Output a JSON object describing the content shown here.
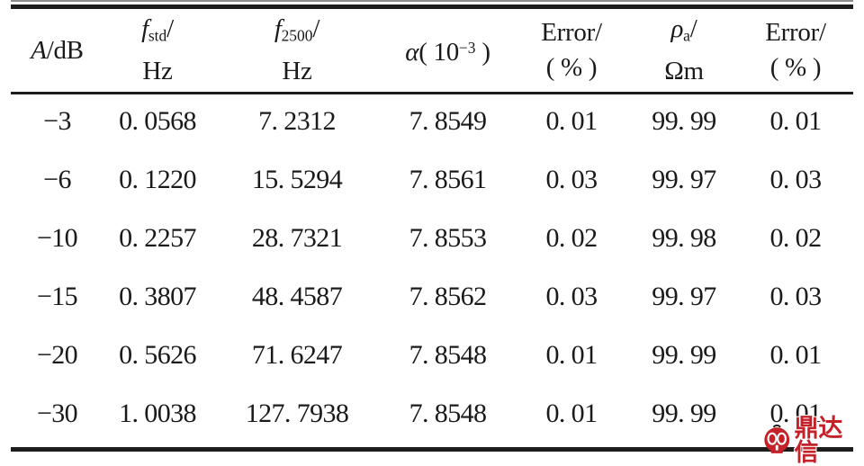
{
  "table": {
    "headers": [
      {
        "sym": "A",
        "rest": "/dB"
      },
      {
        "sym": "f",
        "sub": "std",
        "slash": "/",
        "unit": "Hz"
      },
      {
        "sym": "f",
        "sub": "2500",
        "slash": "/",
        "unit": "Hz"
      },
      {
        "sym": "α",
        "pre": "( 10",
        "sup": "−3",
        "post": " )"
      },
      {
        "line1": "Error/",
        "line2": "( % )"
      },
      {
        "sym": "ρ",
        "sub": "a",
        "slash": "/",
        "unit": "Ωm"
      },
      {
        "line1": "Error/",
        "line2": "( % )"
      }
    ],
    "columns_plain": [
      "A/dB",
      "f_std/Hz",
      "f_2500/Hz",
      "α(10^-3)",
      "Error/(%)",
      "ρ_a/Ωm",
      "Error/(%)"
    ],
    "rows": [
      [
        "−3",
        "0. 0568",
        "7. 2312",
        "7. 8549",
        "0. 01",
        "99. 99",
        "0. 01"
      ],
      [
        "−6",
        "0. 1220",
        "15. 5294",
        "7. 8561",
        "0. 03",
        "99. 97",
        "0. 03"
      ],
      [
        "−10",
        "0. 2257",
        "28. 7321",
        "7. 8553",
        "0. 02",
        "99. 98",
        "0. 02"
      ],
      [
        "−15",
        "0. 3807",
        "48. 4587",
        "7. 8562",
        "0. 03",
        "99. 97",
        "0. 03"
      ],
      [
        "−20",
        "0. 5626",
        "71. 6247",
        "7. 8548",
        "0. 01",
        "99. 99",
        "0. 01"
      ],
      [
        "−30",
        "1. 0038",
        "127. 7938",
        "7. 8548",
        "0. 01",
        "99. 99",
        "0. 01"
      ]
    ]
  },
  "watermark": {
    "text": "鼎达信",
    "color": "#c42128"
  },
  "colors": {
    "text": "#1a1a1a",
    "rule": "#1d1d1d",
    "background": "#ffffff",
    "watermark_red": "#c42128"
  }
}
